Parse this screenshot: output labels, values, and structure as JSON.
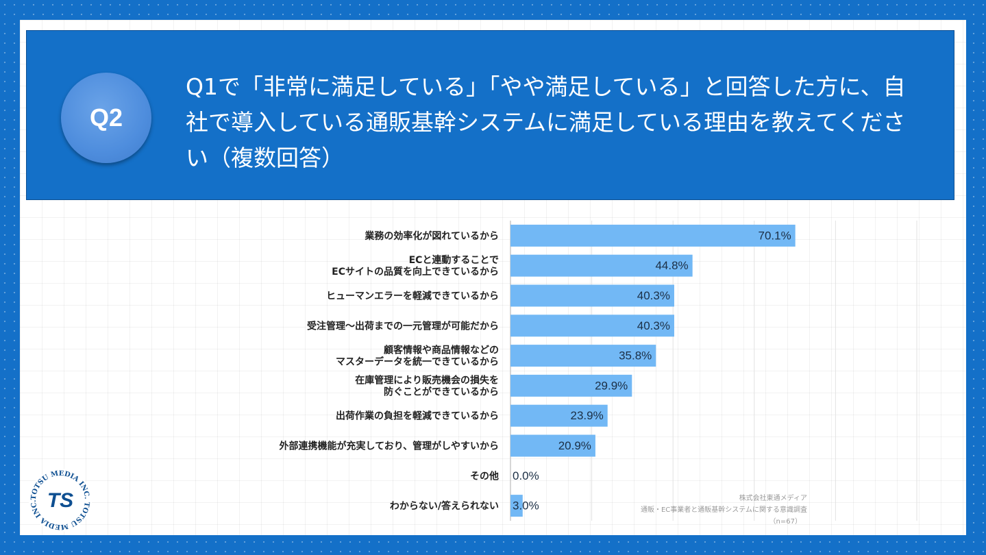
{
  "header": {
    "badge": "Q2",
    "question": "Q1で「非常に満足している」「やや満足している」と回答した方に、自社で導入している通販基幹システムに満足している理由を教えてください（複数回答）"
  },
  "chart_data": {
    "type": "bar",
    "orientation": "horizontal",
    "categories": [
      "業務の効率化が図れているから",
      "ECと連動することで\nECサイトの品質を向上できているから",
      "ヒューマンエラーを軽減できているから",
      "受注管理〜出荷までの一元管理が可能だから",
      "顧客情報や商品情報などの\nマスターデータを統一できているから",
      "在庫管理により販売機会の損失を\n防ぐことができているから",
      "出荷作業の負担を軽減できているから",
      "外部連携機能が充実しており、管理がしやすいから",
      "その他",
      "わからない/答えられない"
    ],
    "values": [
      70.1,
      44.8,
      40.3,
      40.3,
      35.8,
      29.9,
      23.9,
      20.9,
      0.0,
      3.0
    ],
    "value_labels": [
      "70.1%",
      "44.8%",
      "40.3%",
      "40.3%",
      "35.8%",
      "29.9%",
      "23.9%",
      "20.9%",
      "0.0%",
      "3.0%"
    ],
    "xlim": [
      0,
      100
    ],
    "grid": true,
    "bar_color": "#72b8f5"
  },
  "source": {
    "line1": "株式会社東通メディア",
    "line2": "通販・EC事業者と通販基幹システムに関する意識調査",
    "line3": "（n=67）"
  },
  "logo": {
    "ring_text": "TOTSU MEDIA INC. TOTSU MEDIA INC.",
    "mark_text": "TS"
  }
}
